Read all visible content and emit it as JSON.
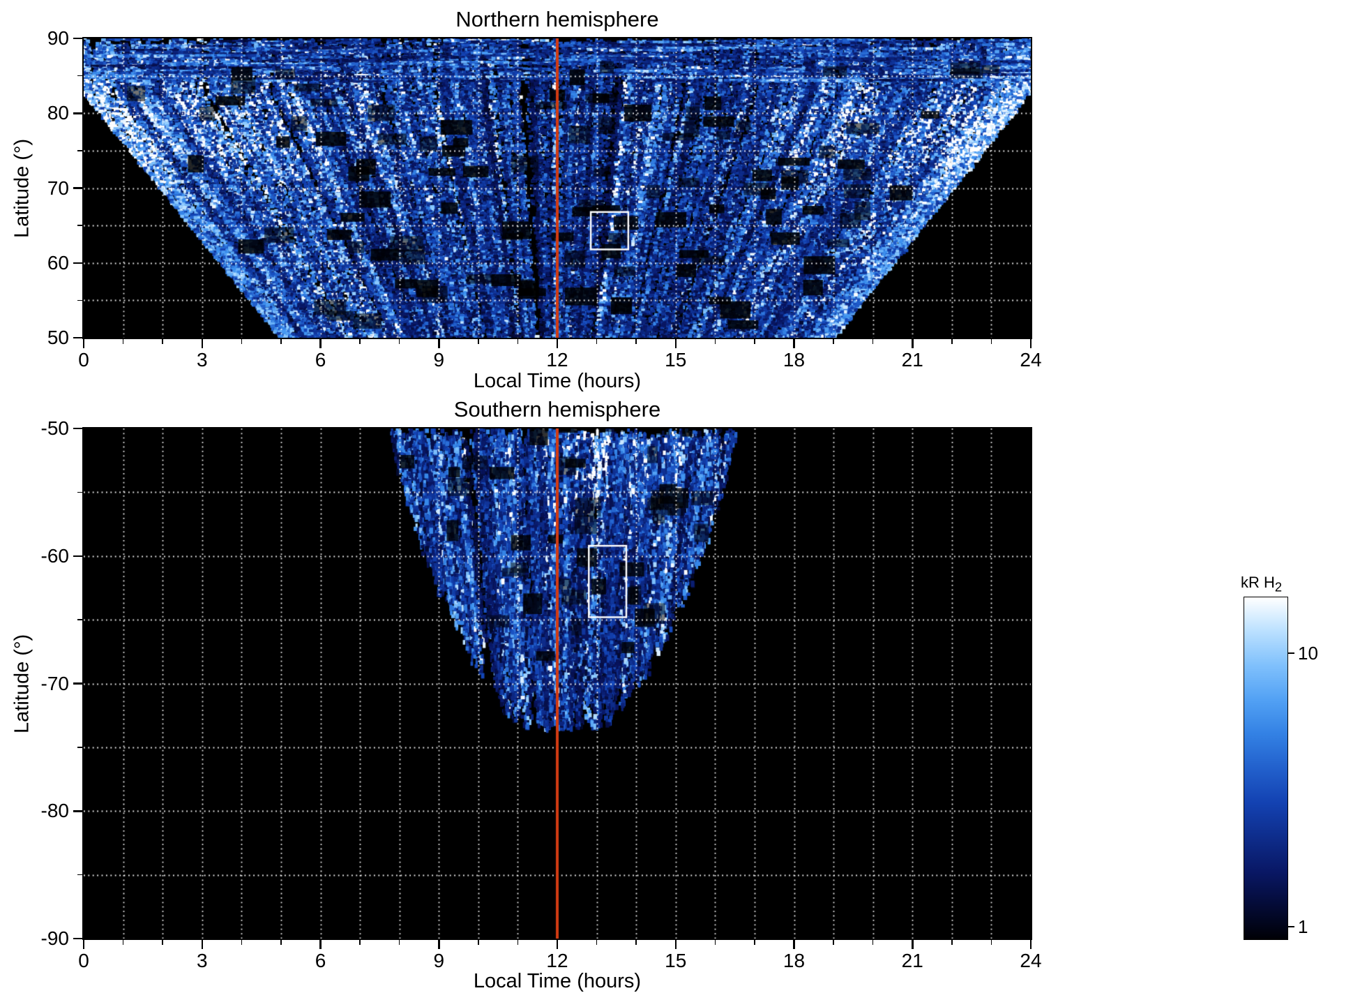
{
  "figure": {
    "type": "scientific-figure",
    "background": "#ffffff"
  },
  "colorbar": {
    "label_main": "kR H",
    "label_sub": "2",
    "scale": "log",
    "vmin": 0.9,
    "vmax": 16,
    "ticks": [
      {
        "value": 10,
        "label": "10"
      },
      {
        "value": 1,
        "label": "1"
      }
    ]
  },
  "chart_data": [
    {
      "type": "heatmap",
      "hemisphere": "north",
      "title": "Northern hemisphere",
      "xlabel": "Local Time (hours)",
      "ylabel": "Latitude (°)",
      "xlim": [
        0,
        24
      ],
      "ylim": [
        50,
        90
      ],
      "xticks": [
        0,
        3,
        6,
        9,
        12,
        15,
        18,
        21,
        24
      ],
      "yticks": [
        90,
        80,
        70,
        60,
        50
      ],
      "x_minor_step": 1,
      "y_minor_step": 5,
      "grid": {
        "x_step": 1,
        "y_step": 5,
        "style": "dotted",
        "color": "#ffffff"
      },
      "noon_line": {
        "x": 12,
        "color": "#d23b12"
      },
      "roi_box": {
        "x0": 12.85,
        "x1": 13.8,
        "y0": 61.8,
        "y1": 66.8,
        "color": "#ffffff"
      },
      "value_unit": "kR H2",
      "value_scale": "log",
      "value_range": [
        0.9,
        16
      ],
      "coverage": {
        "full_lt_coverage_above_lat": 86,
        "lt_halfwidth_at_lat50": 7,
        "lt_center": 12,
        "description": "Speckled auroral H2 brightness fan: full 0-24 h local-time coverage near the pole, narrowing to about LT 5-19 at 50° latitude; brighter emission along the dawn/dusk flanks and in the 75-85° band; no data (black) in the lower corners"
      }
    },
    {
      "type": "heatmap",
      "hemisphere": "south",
      "title": "Southern hemisphere",
      "xlabel": "Local Time (hours)",
      "ylabel": "Latitude (°)",
      "xlim": [
        0,
        24
      ],
      "ylim": [
        -90,
        -50
      ],
      "xticks": [
        0,
        3,
        6,
        9,
        12,
        15,
        18,
        21,
        24
      ],
      "yticks": [
        -50,
        -60,
        -70,
        -80,
        -90
      ],
      "x_minor_step": 1,
      "y_minor_step": 5,
      "grid": {
        "x_step": 1,
        "y_step": 5,
        "style": "dotted",
        "color": "#ffffff"
      },
      "noon_line": {
        "x": 12,
        "color": "#d23b12"
      },
      "roi_box": {
        "x0": 12.8,
        "x1": 13.75,
        "y0": -64.8,
        "y1": -59.2,
        "color": "#ffffff"
      },
      "value_unit": "kR H2",
      "value_scale": "log",
      "value_range": [
        0.9,
        16
      ],
      "coverage": {
        "lt_range_at_lat_minus50": [
          7.8,
          16.5
        ],
        "lowest_latitude_covered": -73,
        "lt_center": 12.15,
        "description": "Dayside fan only: speckled emission between about LT 8 and 16.5 at -50°, converging and ending near -73° latitude; remainder of panel has no data (black)"
      }
    }
  ]
}
